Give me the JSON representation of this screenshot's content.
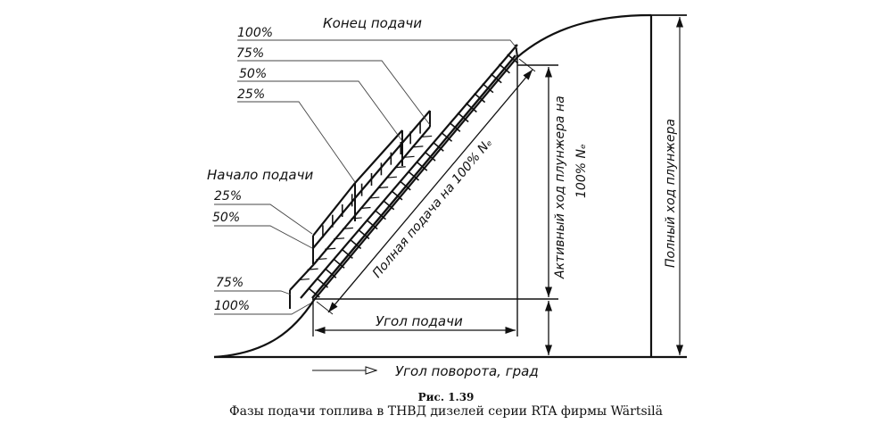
{
  "diagram": {
    "labels": {
      "end_of_delivery": "Конец подачи",
      "start_of_delivery": "Начало подачи",
      "end_pcts": [
        "100%",
        "75%",
        "50%",
        "25%"
      ],
      "start_pcts": [
        "25%",
        "50%",
        "75%",
        "100%"
      ],
      "full_delivery": "Полная подача на 100% Nₑ",
      "active_stroke_line1": "Активный ход плунжера на",
      "active_stroke_line2": "100% Nₑ",
      "full_stroke": "Полный ход плунжера",
      "delivery_angle": "Угол подачи",
      "rotation_angle": "Угол поворота, град"
    },
    "colors": {
      "line": "#111111",
      "background": "#ffffff"
    }
  },
  "caption": {
    "number": "Рис. 1.39",
    "title": "Фазы подачи топлива в ТНВД дизелей серии RTA фирмы Wärtsilä"
  }
}
